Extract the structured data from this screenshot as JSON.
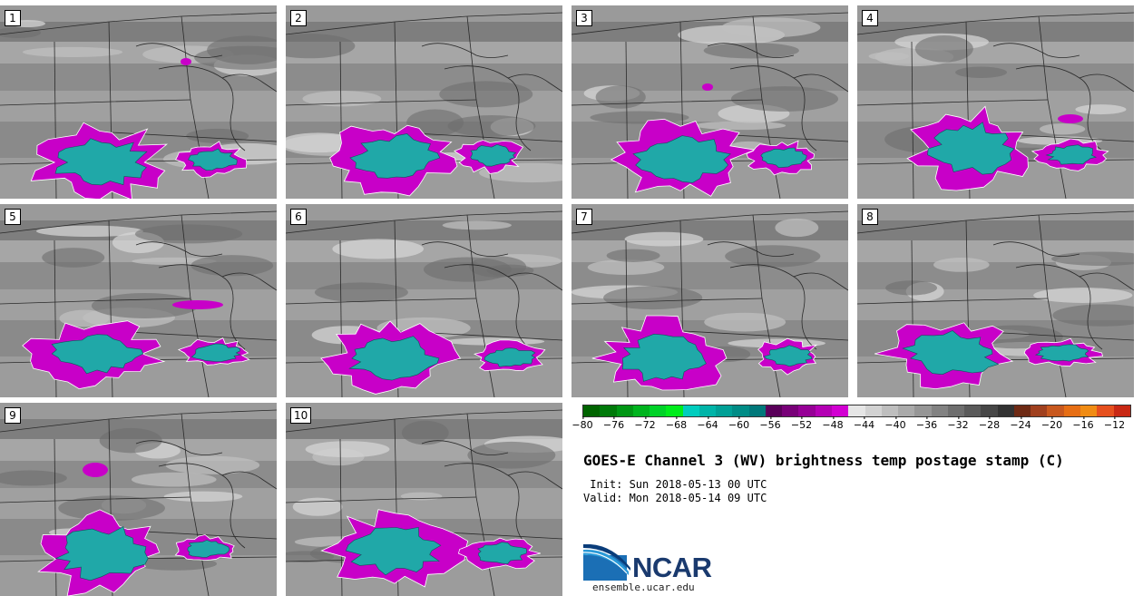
{
  "panels": [
    {
      "label": "1"
    },
    {
      "label": "2"
    },
    {
      "label": "3"
    },
    {
      "label": "4"
    },
    {
      "label": "5"
    },
    {
      "label": "6"
    },
    {
      "label": "7"
    },
    {
      "label": "8"
    },
    {
      "label": "9"
    },
    {
      "label": "10"
    }
  ],
  "colorbar": {
    "ticks": [
      "−80",
      "−76",
      "−72",
      "−68",
      "−64",
      "−60",
      "−56",
      "−52",
      "−48",
      "−44",
      "−40",
      "−36",
      "−32",
      "−28",
      "−24",
      "−20",
      "−16",
      "−12"
    ],
    "colors": [
      "#006400",
      "#007a0a",
      "#009614",
      "#00b41e",
      "#00d228",
      "#00ec1c",
      "#00cdbe",
      "#00b4a8",
      "#00a096",
      "#008c86",
      "#00787a",
      "#5a005a",
      "#780078",
      "#960096",
      "#b400b4",
      "#d200d2",
      "#e6e6e6",
      "#d2d2d2",
      "#bebebe",
      "#aaaaaa",
      "#969696",
      "#828282",
      "#6e6e6e",
      "#5a5a5a",
      "#464646",
      "#323232",
      "#6e2a14",
      "#a0401e",
      "#c8581e",
      "#e66e14",
      "#f08c14",
      "#e6501e",
      "#c82814"
    ]
  },
  "title": "GOES-E Channel 3 (WV) brightness temp postage stamp (C)",
  "init": " Init: Sun 2018-05-13 00 UTC",
  "valid": "Valid: Mon 2018-05-14 09 UTC",
  "logo": {
    "name": "NCAR",
    "url": "ensemble.ucar.edu"
  },
  "colors": {
    "magenta": "#c800c8",
    "teal": "#20a8a8",
    "gray_light": "#bfbfbf",
    "gray_mid": "#8f8f8f",
    "gray_dark": "#6e6e6e"
  }
}
